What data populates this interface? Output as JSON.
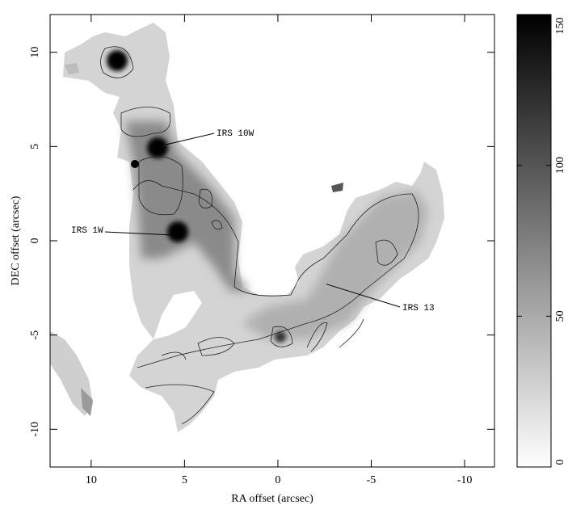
{
  "chart_data": {
    "type": "image",
    "xlabel": "RA offset (arcsec)",
    "ylabel": "DEC offset (arcsec)",
    "xlim": [
      12.2,
      -11.6
    ],
    "ylim": [
      -12,
      12
    ],
    "xticks": [
      10,
      5,
      0,
      -5,
      -10
    ],
    "yticks": [
      10,
      5,
      0,
      -5,
      -10
    ],
    "colorbar": {
      "clim": [
        0,
        150
      ],
      "ticks": [
        0,
        50,
        100,
        150
      ],
      "colors": [
        "#ffffff",
        "#000000"
      ]
    },
    "annotations": [
      {
        "text": "IRS 10W",
        "x": 6.0,
        "y": 5.1
      },
      {
        "text": "IRS 1W",
        "x": 5.6,
        "y": 0.3
      },
      {
        "text": "IRS 13",
        "x": -2.6,
        "y": -2.3
      }
    ]
  }
}
